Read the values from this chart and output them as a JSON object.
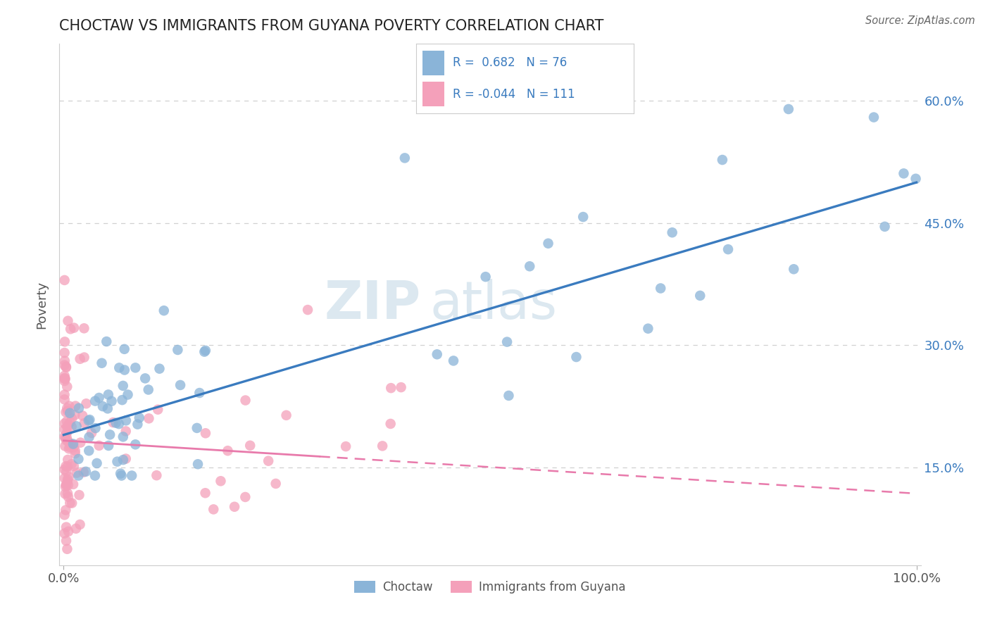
{
  "title": "CHOCTAW VS IMMIGRANTS FROM GUYANA POVERTY CORRELATION CHART",
  "source": "Source: ZipAtlas.com",
  "ylabel": "Poverty",
  "y_ticks": [
    0.15,
    0.3,
    0.45,
    0.6
  ],
  "y_tick_labels": [
    "15.0%",
    "30.0%",
    "45.0%",
    "60.0%"
  ],
  "x_tick_left": "0.0%",
  "x_tick_right": "100.0%",
  "watermark_zip": "ZIP",
  "watermark_atlas": "atlas",
  "legend_line1": "R =  0.682   N = 76",
  "legend_line2": "R = -0.044   N = 111",
  "choctaw_color": "#8ab4d8",
  "guyana_color": "#f4a0ba",
  "choctaw_line_color": "#3a7bbf",
  "guyana_line_color": "#e87aab",
  "title_color": "#222222",
  "source_color": "#666666",
  "background_color": "#ffffff",
  "grid_color": "#d0d0d0",
  "right_tick_color": "#3a7bbf",
  "bottom_tick_color": "#555555",
  "legend_text_color": "#3a7bbf",
  "legend_border_color": "#cccccc",
  "bottom_legend_color": "#555555"
}
